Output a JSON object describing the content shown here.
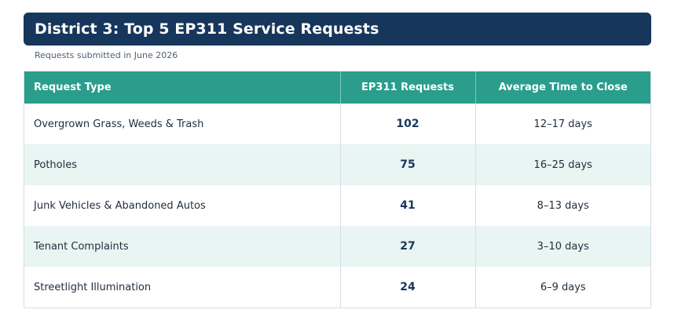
{
  "header": {
    "title": "District 3: Top 5 EP311 Service Requests",
    "subtitle": "Requests submitted in June 2026"
  },
  "table": {
    "columns": [
      "Request Type",
      "EP311 Requests",
      "Average Time to Close"
    ],
    "rows": [
      {
        "type": "Overgrown Grass, Weeds & Trash",
        "requests": "102",
        "time": "12–17 days"
      },
      {
        "type": "Potholes",
        "requests": "75",
        "time": "16–25 days"
      },
      {
        "type": "Junk Vehicles & Abandoned Autos",
        "requests": "41",
        "time": "8–13 days"
      },
      {
        "type": "Tenant Complaints",
        "requests": "27",
        "time": "3–10 days"
      },
      {
        "type": "Streetlight Illumination",
        "requests": "24",
        "time": "6–9 days"
      }
    ]
  },
  "colors": {
    "header_bg": "#17365c",
    "table_header_bg": "#2a9d8c",
    "alt_row_bg": "#e8f5f2"
  }
}
